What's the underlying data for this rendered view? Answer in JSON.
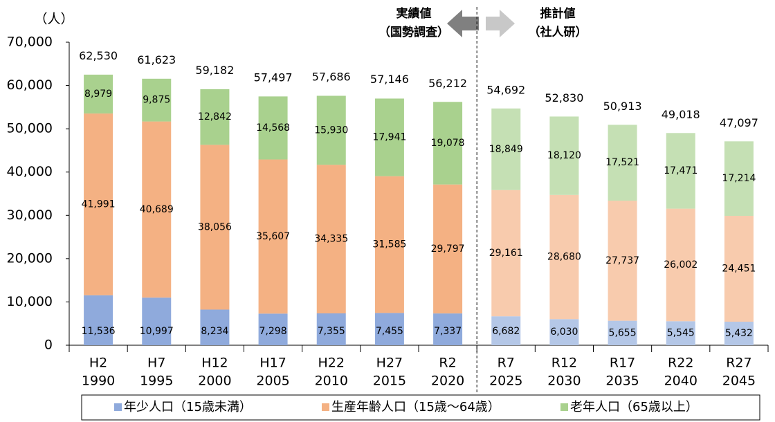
{
  "chart_data": {
    "type": "stacked_bar",
    "y_unit": "（人）",
    "annotations": {
      "actual": [
        "実績値",
        "（国勢調査）"
      ],
      "estimate": [
        "推計値",
        "（社人研）"
      ]
    },
    "categories": [
      [
        "H2",
        "1990"
      ],
      [
        "H7",
        "1995"
      ],
      [
        "H12",
        "2000"
      ],
      [
        "H17",
        "2005"
      ],
      [
        "H22",
        "2010"
      ],
      [
        "H27",
        "2015"
      ],
      [
        "R2",
        "2020"
      ],
      [
        "R7",
        "2025"
      ],
      [
        "R12",
        "2030"
      ],
      [
        "R17",
        "2035"
      ],
      [
        "R22",
        "2040"
      ],
      [
        "R27",
        "2045"
      ]
    ],
    "projected_from": 7,
    "series": [
      {
        "name": "年少人口（15歳未満）",
        "color": "#8faadc",
        "projected_color": "#b4c7e7",
        "values": [
          11536,
          10997,
          8234,
          7298,
          7355,
          7455,
          7337,
          6682,
          6030,
          5655,
          5545,
          5432
        ],
        "value_labels": [
          "11,536",
          "10,997",
          "8,234",
          "7,298",
          "7,355",
          "7,455",
          "7,337",
          "6,682",
          "6,030",
          "5,655",
          "5,545",
          "5,432"
        ]
      },
      {
        "name": "生産年齢人口（15歳～64歳）",
        "color": "#f4b183",
        "projected_color": "#f8cbad",
        "values": [
          41991,
          40689,
          38056,
          35607,
          34335,
          31585,
          29797,
          29161,
          28680,
          27737,
          26002,
          24451
        ],
        "value_labels": [
          "41,991",
          "40,689",
          "38,056",
          "35,607",
          "34,335",
          "31,585",
          "29,797",
          "29,161",
          "28,680",
          "27,737",
          "26,002",
          "24,451"
        ]
      },
      {
        "name": "老年人口（65歳以上）",
        "color": "#a9d18e",
        "projected_color": "#c5e0b4",
        "values": [
          8979,
          9875,
          12842,
          14568,
          15930,
          17941,
          19078,
          18849,
          18120,
          17521,
          17471,
          17214
        ],
        "value_labels": [
          "8,979",
          "9,875",
          "12,842",
          "14,568",
          "15,930",
          "17,941",
          "19,078",
          "18,849",
          "18,120",
          "17,521",
          "17,471",
          "17,214"
        ]
      }
    ],
    "totals": [
      62530,
      61623,
      59182,
      57497,
      57686,
      57146,
      56212,
      54692,
      52830,
      50913,
      49018,
      47097
    ],
    "total_labels": [
      "62,530",
      "61,623",
      "59,182",
      "57,497",
      "57,686",
      "57,146",
      "56,212",
      "54,692",
      "52,830",
      "50,913",
      "49,018",
      "47,097"
    ],
    "ylim": [
      0,
      70000
    ],
    "yticks": [
      0,
      {
        "value": 10000,
        "label": "10,000"
      },
      {
        "value": 20000,
        "label": "20,000"
      },
      {
        "value": 30000,
        "label": "30,000"
      },
      {
        "value": 40000,
        "label": "40,000"
      },
      {
        "value": 50000,
        "label": "50,000"
      },
      {
        "value": 60000,
        "label": "60,000"
      },
      {
        "value": 70000,
        "label": "70,000"
      }
    ],
    "legend": "bottom"
  }
}
